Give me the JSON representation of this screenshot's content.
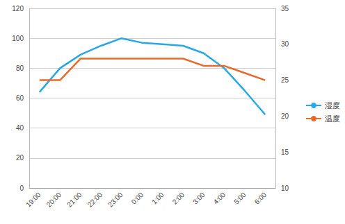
{
  "chart_data": {
    "type": "line",
    "categories": [
      "19:00",
      "20:00",
      "21:00",
      "22:00",
      "23:00",
      "0:00",
      "1:00",
      "2:00",
      "3:00",
      "4:00",
      "5:00",
      "6:00"
    ],
    "series": [
      {
        "name": "湿度",
        "color": "#29a8e6",
        "axis": "y",
        "values": [
          64,
          80,
          89,
          95,
          100,
          97,
          96,
          95,
          90,
          80,
          65,
          49
        ]
      },
      {
        "name": "温度",
        "color": "#e8692c",
        "axis": "y2",
        "values": [
          25,
          25,
          28,
          28,
          28,
          28,
          28,
          28,
          27,
          27,
          26,
          25
        ]
      }
    ],
    "ylim": [
      0,
      120
    ],
    "yticks": [
      0,
      20,
      40,
      60,
      80,
      100,
      120
    ],
    "y2lim": [
      10,
      35
    ],
    "y2ticks": [
      10,
      15,
      20,
      25,
      30,
      35
    ],
    "grid": true,
    "legend": "right"
  }
}
